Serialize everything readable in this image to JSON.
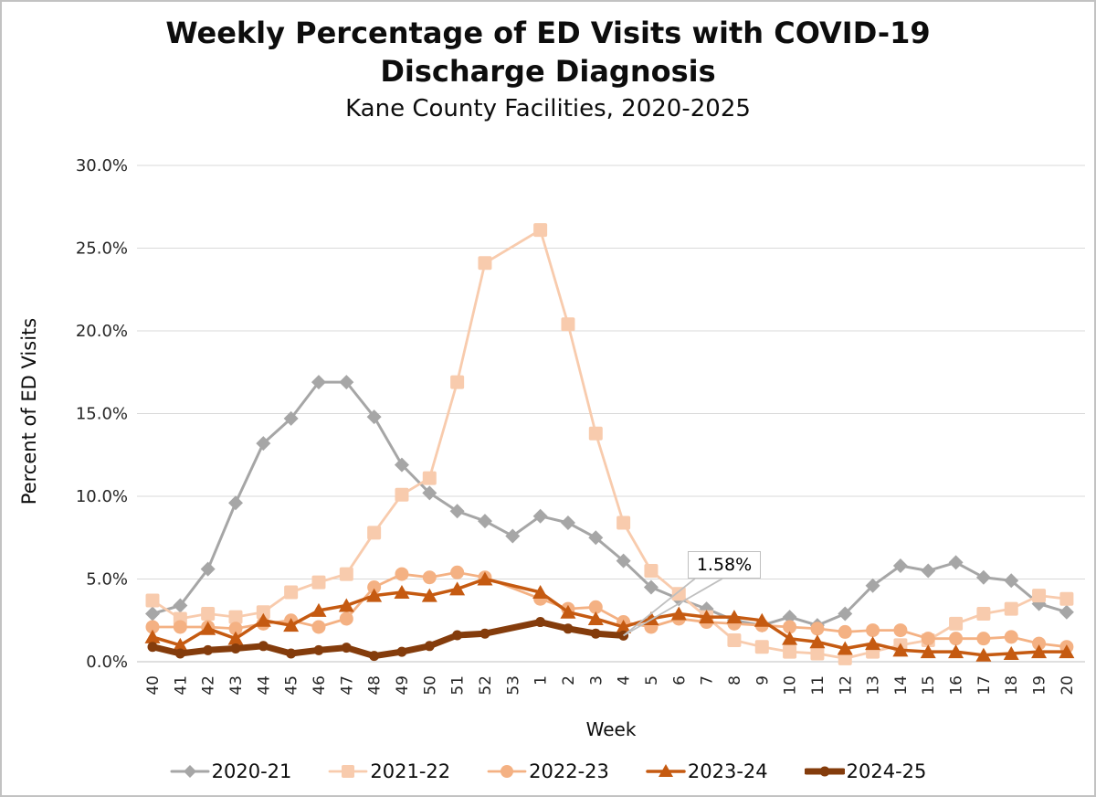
{
  "chart_data": {
    "type": "line",
    "title": "Weekly Percentage of ED Visits with COVID-19 Discharge Diagnosis",
    "subtitle": "Kane County Facilities, 2020-2025",
    "xlabel": "Week",
    "ylabel": "Percent of ED Visits",
    "ylim": [
      0,
      30
    ],
    "y_ticks": [
      "0.0%",
      "5.0%",
      "10.0%",
      "15.0%",
      "20.0%",
      "25.0%",
      "30.0%"
    ],
    "y_tick_values": [
      0,
      5,
      10,
      15,
      20,
      25,
      30
    ],
    "grid": "horizontal",
    "gridline_color": "#d9d9d9",
    "legend_position": "bottom",
    "categories": [
      "40",
      "41",
      "42",
      "43",
      "44",
      "45",
      "46",
      "47",
      "48",
      "49",
      "50",
      "51",
      "52",
      "53",
      "1",
      "2",
      "3",
      "4",
      "5",
      "6",
      "7",
      "8",
      "9",
      "10",
      "11",
      "12",
      "13",
      "14",
      "15",
      "16",
      "17",
      "18",
      "19",
      "20"
    ],
    "series": [
      {
        "name": "2020-21",
        "color": "#a6a6a6",
        "marker": "diamond",
        "line_width": 3,
        "values": [
          2.9,
          3.4,
          5.6,
          9.6,
          13.2,
          14.7,
          16.9,
          16.9,
          14.8,
          11.9,
          10.2,
          9.1,
          8.5,
          7.6,
          8.8,
          8.4,
          7.5,
          6.1,
          4.5,
          3.8,
          3.2,
          2.5,
          2.2,
          2.7,
          2.2,
          2.9,
          4.6,
          5.8,
          5.5,
          6.0,
          5.1,
          4.9,
          3.5,
          3.0
        ]
      },
      {
        "name": "2021-22",
        "color": "#f8cbad",
        "marker": "square",
        "line_width": 2.8,
        "values": [
          3.7,
          2.6,
          2.9,
          2.7,
          3.0,
          4.2,
          4.8,
          5.3,
          7.8,
          10.1,
          11.1,
          16.9,
          24.1,
          null,
          26.1,
          20.4,
          13.8,
          8.4,
          5.5,
          4.1,
          2.7,
          1.3,
          0.9,
          0.6,
          0.5,
          0.2,
          0.6,
          1.0,
          1.3,
          2.3,
          2.9,
          3.2,
          4.0,
          3.8
        ]
      },
      {
        "name": "2022-23",
        "color": "#f4b183",
        "marker": "circle",
        "line_width": 2.8,
        "values": [
          2.1,
          2.1,
          2.1,
          2.0,
          2.3,
          2.5,
          2.1,
          2.6,
          4.5,
          5.3,
          5.1,
          5.4,
          5.1,
          null,
          3.8,
          3.2,
          3.3,
          2.4,
          2.1,
          2.6,
          2.4,
          2.3,
          2.2,
          2.1,
          2.0,
          1.8,
          1.9,
          1.9,
          1.4,
          1.4,
          1.4,
          1.5,
          1.1,
          0.9
        ]
      },
      {
        "name": "2023-24",
        "color": "#c55a11",
        "marker": "triangle",
        "line_width": 3.5,
        "values": [
          1.5,
          1.0,
          2.0,
          1.4,
          2.5,
          2.2,
          3.1,
          3.4,
          4.0,
          4.2,
          4.0,
          4.4,
          5.0,
          null,
          4.2,
          3.0,
          2.6,
          2.1,
          2.6,
          2.9,
          2.7,
          2.7,
          2.5,
          1.4,
          1.2,
          0.8,
          1.1,
          0.7,
          0.6,
          0.6,
          0.4,
          0.5,
          0.6,
          0.6
        ]
      },
      {
        "name": "2024-25",
        "color": "#843c0c",
        "marker": "bold-circle",
        "line_width": 7,
        "values": [
          0.9,
          0.5,
          0.7,
          0.8,
          0.95,
          0.5,
          0.7,
          0.85,
          0.35,
          0.6,
          0.95,
          1.6,
          1.7,
          null,
          2.4,
          2.0,
          1.7,
          1.58,
          null,
          null,
          null,
          null,
          null,
          null,
          null,
          null,
          null,
          null,
          null,
          null,
          null,
          null,
          null,
          null
        ]
      }
    ],
    "annotations": [
      {
        "text": "1.58%",
        "series": "2024-25",
        "category": "4",
        "value": 1.58
      }
    ]
  }
}
